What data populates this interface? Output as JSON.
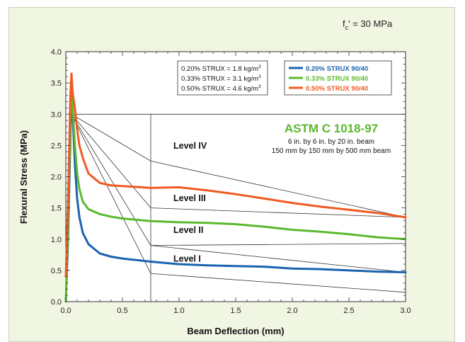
{
  "fc_label": "f",
  "fc_sub": "c",
  "fc_value": "' = 30 MPa",
  "note_box": {
    "lines": [
      {
        "text": "0.20% STRUX = 1.8 kg/m",
        "sup": "3"
      },
      {
        "text": "0.33% STRUX = 3.1 kg/m",
        "sup": "3"
      },
      {
        "text": "0.50% STRUX = 4.6 kg/m",
        "sup": "3"
      }
    ]
  },
  "colors": {
    "s020": "#1a62b0",
    "s033": "#5cb82e",
    "s050": "#f05a22",
    "astm": "#5cb82e",
    "panel": "#f1f6e3"
  },
  "astm_title": "ASTM C 1018-97",
  "astm_lines": [
    "6 in. by 6 in. by 20 in. beam",
    "150 mm by 150 mm by 500 mm beam"
  ],
  "chart_data": {
    "type": "line",
    "title": "",
    "xlabel": "Beam Deflection (mm)",
    "ylabel": "Flexural Stress (MPa)",
    "xlim": [
      0,
      3.0
    ],
    "ylim": [
      0,
      4.0
    ],
    "xticks": [
      "0.0",
      "0.5",
      "1.0",
      "1.5",
      "2.0",
      "2.5",
      "3.0"
    ],
    "yticks": [
      "0.0",
      "0.5",
      "1.0",
      "1.5",
      "2.0",
      "2.5",
      "3.0",
      "3.5",
      "4.0"
    ],
    "grid": false,
    "legend_position": "top-right",
    "series": [
      {
        "name": "0.20% STRUX 90/40",
        "color": "#1a62b0",
        "x": [
          0.0,
          0.02,
          0.04,
          0.05,
          0.06,
          0.08,
          0.1,
          0.12,
          0.15,
          0.2,
          0.3,
          0.4,
          0.5,
          0.6,
          0.75,
          1.0,
          1.25,
          1.5,
          1.75,
          2.0,
          2.25,
          2.5,
          2.75,
          3.0
        ],
        "y": [
          0.0,
          1.0,
          2.6,
          3.4,
          3.0,
          2.2,
          1.65,
          1.35,
          1.1,
          0.92,
          0.77,
          0.72,
          0.69,
          0.67,
          0.64,
          0.6,
          0.58,
          0.57,
          0.56,
          0.53,
          0.52,
          0.5,
          0.48,
          0.47
        ]
      },
      {
        "name": "0.33% STRUX 90/40",
        "color": "#5cb82e",
        "x": [
          0.0,
          0.02,
          0.04,
          0.05,
          0.06,
          0.08,
          0.1,
          0.12,
          0.15,
          0.2,
          0.3,
          0.35,
          0.4,
          0.5,
          0.75,
          1.0,
          1.25,
          1.5,
          1.75,
          2.0,
          2.25,
          2.5,
          2.75,
          3.0
        ],
        "y": [
          0.0,
          1.2,
          2.9,
          3.45,
          3.1,
          2.5,
          2.05,
          1.8,
          1.6,
          1.48,
          1.4,
          1.38,
          1.36,
          1.33,
          1.29,
          1.27,
          1.26,
          1.24,
          1.2,
          1.15,
          1.12,
          1.08,
          1.03,
          1.0
        ]
      },
      {
        "name": "0.50% STRUX 90/40",
        "color": "#f05a22",
        "x": [
          0.0,
          0.02,
          0.04,
          0.05,
          0.06,
          0.08,
          0.1,
          0.12,
          0.15,
          0.2,
          0.3,
          0.4,
          0.5,
          0.75,
          1.0,
          1.25,
          1.5,
          1.75,
          2.0,
          2.25,
          2.5,
          2.75,
          3.0
        ],
        "y": [
          0.4,
          1.6,
          3.3,
          3.65,
          3.35,
          3.1,
          2.75,
          2.5,
          2.3,
          2.05,
          1.9,
          1.86,
          1.85,
          1.82,
          1.83,
          1.78,
          1.72,
          1.65,
          1.58,
          1.52,
          1.47,
          1.42,
          1.35
        ]
      }
    ],
    "reference_lines": [
      {
        "x": [
          0.05,
          3.0
        ],
        "y": [
          3.0,
          3.0
        ]
      },
      {
        "x": [
          0.75,
          0.75
        ],
        "y": [
          0.0,
          3.0
        ]
      },
      {
        "x": [
          0.05,
          0.75,
          3.0
        ],
        "y": [
          3.0,
          2.25,
          1.35
        ]
      },
      {
        "x": [
          0.05,
          0.75,
          3.0
        ],
        "y": [
          3.0,
          1.5,
          1.35
        ]
      },
      {
        "x": [
          0.05,
          0.75,
          3.0
        ],
        "y": [
          3.0,
          0.9,
          0.47
        ]
      },
      {
        "x": [
          0.05,
          0.75,
          3.0
        ],
        "y": [
          3.0,
          0.45,
          0.15
        ]
      },
      {
        "x": [
          0.75,
          3.0
        ],
        "y": [
          0.9,
          0.93
        ]
      }
    ],
    "annotations": [
      {
        "text": "Level IV",
        "x": 0.95,
        "y": 2.45
      },
      {
        "text": "Level III",
        "x": 0.95,
        "y": 1.61
      },
      {
        "text": "Level II",
        "x": 0.95,
        "y": 1.1
      },
      {
        "text": "Level I",
        "x": 0.95,
        "y": 0.64
      }
    ]
  }
}
